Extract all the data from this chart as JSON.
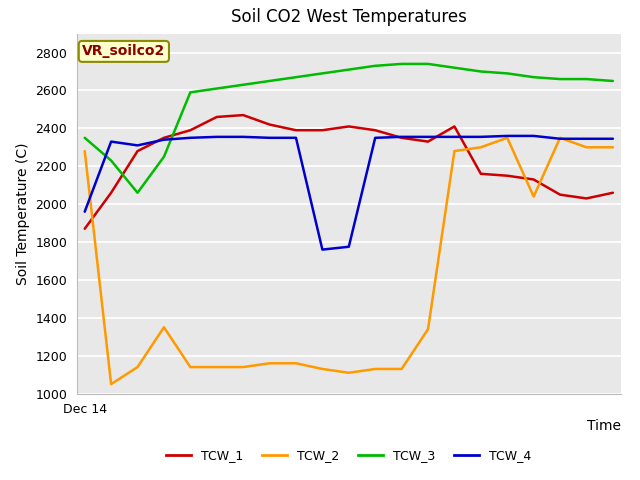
{
  "title": "Soil CO2 West Temperatures",
  "xlabel": "Time",
  "ylabel": "Soil Temperature (C)",
  "annotation": "VR_soilco2",
  "ylim": [
    1000,
    2900
  ],
  "yticks": [
    1000,
    1200,
    1400,
    1600,
    1800,
    2000,
    2200,
    2400,
    2600,
    2800
  ],
  "x_label_pos": "Dec 14",
  "TCW_1": {
    "color": "#cc0000",
    "x": [
      0,
      1,
      2,
      3,
      4,
      5,
      6,
      7,
      8,
      9,
      10,
      11,
      12,
      13,
      14,
      15,
      16,
      17,
      18,
      19,
      20
    ],
    "y": [
      1870,
      2060,
      2280,
      2350,
      2390,
      2460,
      2470,
      2420,
      2390,
      2390,
      2410,
      2390,
      2350,
      2330,
      2410,
      2160,
      2150,
      2130,
      2050,
      2030,
      2060
    ]
  },
  "TCW_2": {
    "color": "#ff9900",
    "x": [
      0,
      1,
      2,
      3,
      4,
      5,
      6,
      7,
      8,
      9,
      10,
      11,
      12,
      13,
      14,
      15,
      16,
      17,
      18,
      19,
      20
    ],
    "y": [
      2280,
      1050,
      1140,
      1350,
      1140,
      1140,
      1140,
      1160,
      1160,
      1130,
      1110,
      1130,
      1130,
      1340,
      2280,
      2300,
      2350,
      2040,
      2350,
      2300,
      2300
    ]
  },
  "TCW_3": {
    "color": "#00bb00",
    "x": [
      0,
      1,
      2,
      3,
      4,
      5,
      6,
      7,
      8,
      9,
      10,
      11,
      12,
      13,
      14,
      15,
      16,
      17,
      18,
      19,
      20
    ],
    "y": [
      2350,
      2230,
      2060,
      2250,
      2590,
      2610,
      2630,
      2650,
      2670,
      2690,
      2710,
      2730,
      2740,
      2740,
      2720,
      2700,
      2690,
      2670,
      2660,
      2660,
      2650
    ]
  },
  "TCW_4": {
    "color": "#0000cc",
    "x": [
      0,
      1,
      2,
      3,
      4,
      5,
      6,
      7,
      8,
      9,
      10,
      11,
      12,
      13,
      14,
      15,
      16,
      17,
      18,
      19,
      20
    ],
    "y": [
      1960,
      2330,
      2310,
      2340,
      2350,
      2355,
      2355,
      2350,
      2350,
      1760,
      1775,
      2350,
      2355,
      2355,
      2355,
      2355,
      2360,
      2360,
      2345,
      2345,
      2345
    ]
  },
  "figsize": [
    6.4,
    4.8
  ],
  "dpi": 100,
  "title_fontsize": 12,
  "axis_label_fontsize": 10,
  "tick_fontsize": 9,
  "legend_fontsize": 9,
  "linewidth": 1.8
}
